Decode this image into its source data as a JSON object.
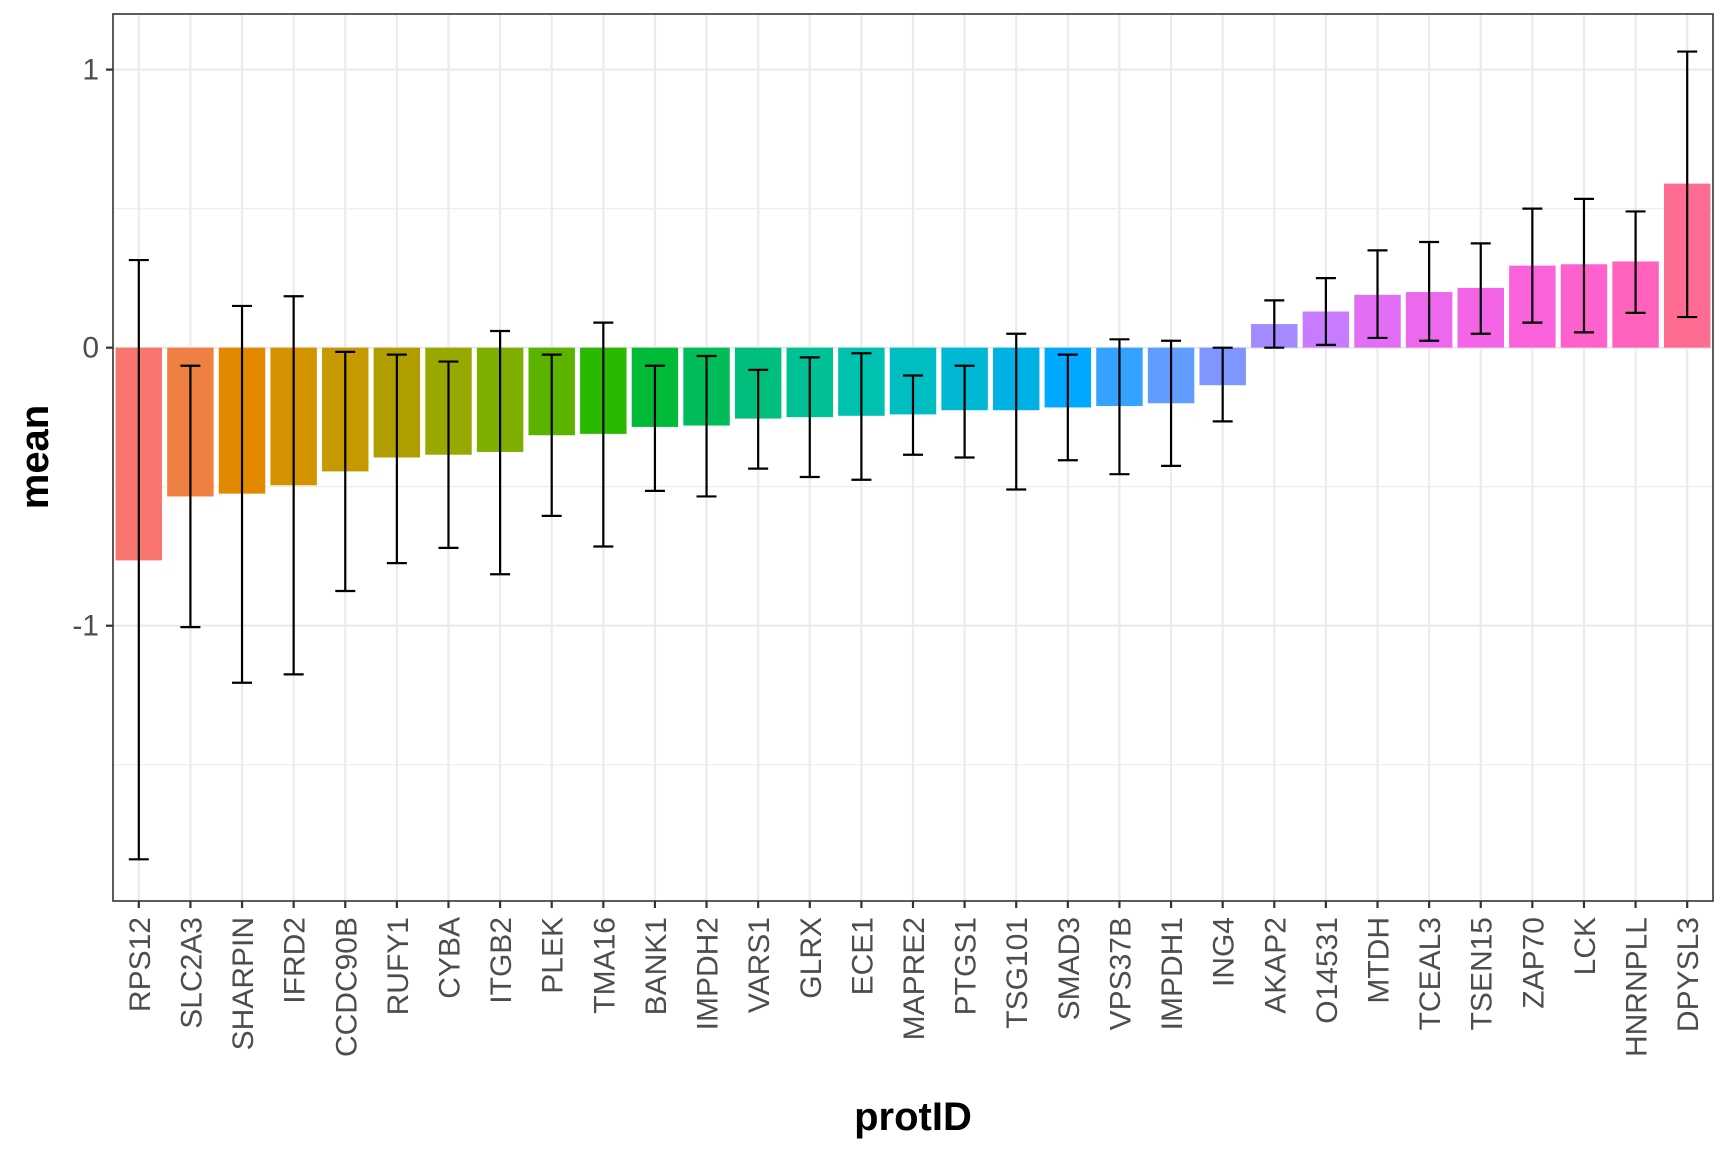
{
  "chart_data": {
    "type": "bar",
    "xlabel": "protID",
    "ylabel": "mean",
    "ylim": [
      -1.99,
      1.2
    ],
    "yticks": [
      1,
      0,
      -1
    ],
    "ytick_labels": [
      "1",
      "0",
      "-1"
    ],
    "grid": true,
    "legend": "none",
    "error_bars": true,
    "categories": [
      "RPS12",
      "SLC2A3",
      "SHARPIN",
      "IFRD2",
      "CCDC90B",
      "RUFY1",
      "CYBA",
      "ITGB2",
      "PLEK",
      "TMA16",
      "BANK1",
      "IMPDH2",
      "VARS1",
      "GLRX",
      "ECE1",
      "MAPRE2",
      "PTGS1",
      "TSG101",
      "SMAD3",
      "VPS37B",
      "IMPDH1",
      "ING4",
      "AKAP2",
      "O14531",
      "MTDH",
      "TCEAL3",
      "TSEN15",
      "ZAP70",
      "LCK",
      "HNRNPLL",
      "DPYSL3"
    ],
    "values": [
      -0.765,
      -0.535,
      -0.525,
      -0.495,
      -0.445,
      -0.395,
      -0.385,
      -0.375,
      -0.315,
      -0.31,
      -0.285,
      -0.28,
      -0.255,
      -0.25,
      -0.245,
      -0.24,
      -0.225,
      -0.225,
      -0.215,
      -0.21,
      -0.2,
      -0.135,
      0.085,
      0.13,
      0.19,
      0.2,
      0.215,
      0.295,
      0.3,
      0.31,
      0.59
    ],
    "error_lower": [
      -1.84,
      -1.005,
      -1.205,
      -1.175,
      -0.875,
      -0.775,
      -0.72,
      -0.815,
      -0.605,
      -0.715,
      -0.515,
      -0.535,
      -0.435,
      -0.465,
      -0.475,
      -0.385,
      -0.395,
      -0.51,
      -0.405,
      -0.455,
      -0.425,
      -0.265,
      0.0,
      0.01,
      0.035,
      0.025,
      0.05,
      0.09,
      0.055,
      0.125,
      0.11
    ],
    "error_upper": [
      0.315,
      -0.065,
      0.15,
      0.185,
      -0.015,
      -0.025,
      -0.05,
      0.06,
      -0.025,
      0.09,
      -0.065,
      -0.03,
      -0.08,
      -0.035,
      -0.02,
      -0.1,
      -0.065,
      0.05,
      -0.025,
      0.03,
      0.025,
      0.0,
      0.17,
      0.25,
      0.35,
      0.38,
      0.375,
      0.5,
      0.535,
      0.49,
      1.065
    ],
    "colors": [
      "#F8766D",
      "#EE8043",
      "#E38900",
      "#D39200",
      "#C49A00",
      "#B09E00",
      "#99A800",
      "#7DAE00",
      "#5BB300",
      "#28B900",
      "#00BA38",
      "#00BC59",
      "#00BF7D",
      "#00C096",
      "#00C0AF",
      "#00BDC2",
      "#00B8D4",
      "#00B2E3",
      "#00A9FF",
      "#35A2FF",
      "#619CFF",
      "#7F96FF",
      "#A58AFF",
      "#C77CFF",
      "#E36EF6",
      "#ED68ED",
      "#F365E6",
      "#FA62DB",
      "#FF61CC",
      "#FF62BC",
      "#FF6C91"
    ]
  }
}
